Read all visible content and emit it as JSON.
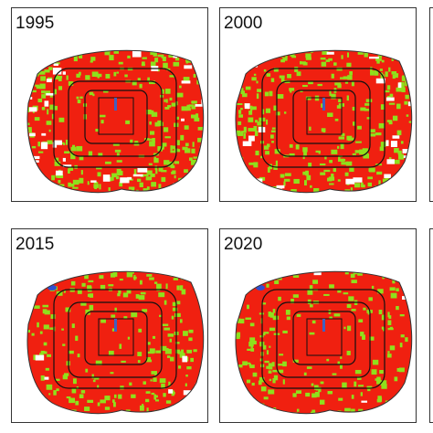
{
  "panels": [
    {
      "label": "1995"
    },
    {
      "label": "2000"
    },
    {
      "label": "2015"
    },
    {
      "label": "2020"
    }
  ]
}
